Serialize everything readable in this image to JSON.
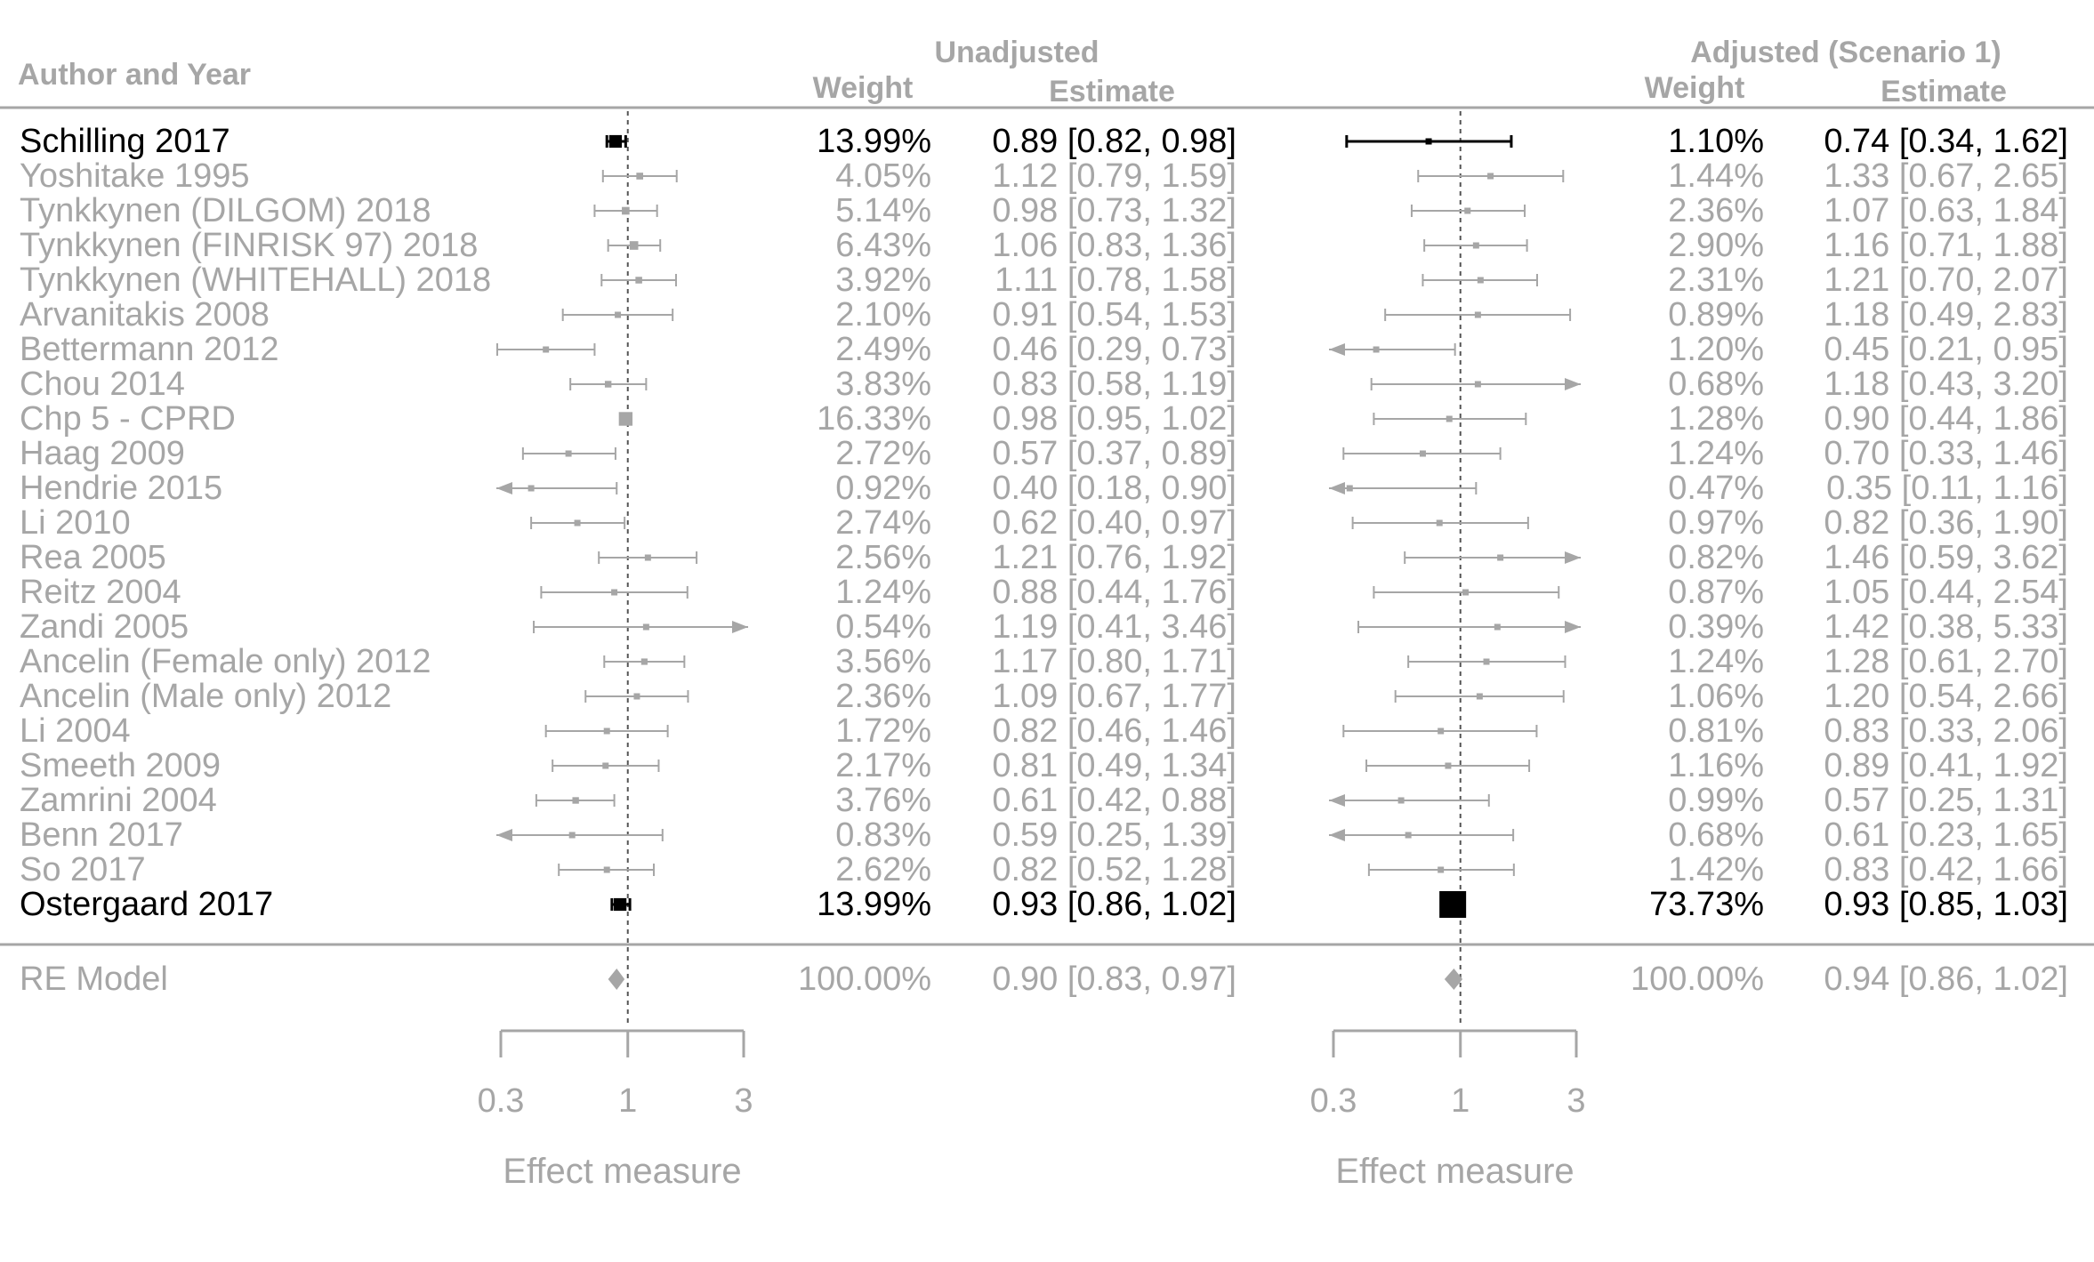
{
  "chart_data": {
    "type": "forest",
    "headers": {
      "study": "Author and Year",
      "unadjusted": "Unadjusted",
      "adjusted": "Adjusted (Scenario 1)",
      "weight": "Weight",
      "estimate": "Estimate"
    },
    "x_scale": "log",
    "xlim": [
      0.3,
      3
    ],
    "ticks": [
      {
        "value": 0.3,
        "label": "0.3"
      },
      {
        "value": 1,
        "label": "1"
      },
      {
        "value": 3,
        "label": "3"
      }
    ],
    "xlabel": "Effect measure",
    "reference_line": 1,
    "colors": {
      "highlight": "#000000",
      "other": "#a6a6a6"
    },
    "rows": [
      {
        "study": "Schilling 2017",
        "highlight": true,
        "unadj": {
          "weight": "13.99%",
          "est": 0.89,
          "lo": 0.82,
          "hi": 0.98,
          "text": "0.89 [0.82, 0.98]"
        },
        "adj": {
          "weight": "1.10%",
          "est": 0.74,
          "lo": 0.34,
          "hi": 1.62,
          "text": "0.74 [0.34, 1.62]"
        }
      },
      {
        "study": "Yoshitake 1995",
        "highlight": false,
        "unadj": {
          "weight": "4.05%",
          "est": 1.12,
          "lo": 0.79,
          "hi": 1.59,
          "text": "1.12 [0.79, 1.59]"
        },
        "adj": {
          "weight": "1.44%",
          "est": 1.33,
          "lo": 0.67,
          "hi": 2.65,
          "text": "1.33 [0.67, 2.65]"
        }
      },
      {
        "study": "Tynkkynen (DILGOM) 2018",
        "highlight": false,
        "unadj": {
          "weight": "5.14%",
          "est": 0.98,
          "lo": 0.73,
          "hi": 1.32,
          "text": "0.98 [0.73, 1.32]"
        },
        "adj": {
          "weight": "2.36%",
          "est": 1.07,
          "lo": 0.63,
          "hi": 1.84,
          "text": "1.07 [0.63, 1.84]"
        }
      },
      {
        "study": "Tynkkynen (FINRISK 97) 2018",
        "highlight": false,
        "unadj": {
          "weight": "6.43%",
          "est": 1.06,
          "lo": 0.83,
          "hi": 1.36,
          "text": "1.06 [0.83, 1.36]"
        },
        "adj": {
          "weight": "2.90%",
          "est": 1.16,
          "lo": 0.71,
          "hi": 1.88,
          "text": "1.16 [0.71, 1.88]"
        }
      },
      {
        "study": "Tynkkynen (WHITEHALL) 2018",
        "highlight": false,
        "unadj": {
          "weight": "3.92%",
          "est": 1.11,
          "lo": 0.78,
          "hi": 1.58,
          "text": "1.11 [0.78, 1.58]"
        },
        "adj": {
          "weight": "2.31%",
          "est": 1.21,
          "lo": 0.7,
          "hi": 2.07,
          "text": "1.21 [0.70, 2.07]"
        }
      },
      {
        "study": "Arvanitakis 2008",
        "highlight": false,
        "unadj": {
          "weight": "2.10%",
          "est": 0.91,
          "lo": 0.54,
          "hi": 1.53,
          "text": "0.91 [0.54, 1.53]"
        },
        "adj": {
          "weight": "0.89%",
          "est": 1.18,
          "lo": 0.49,
          "hi": 2.83,
          "text": "1.18 [0.49, 2.83]"
        }
      },
      {
        "study": "Bettermann 2012",
        "highlight": false,
        "unadj": {
          "weight": "2.49%",
          "est": 0.46,
          "lo": 0.29,
          "hi": 0.73,
          "text": "0.46 [0.29, 0.73]"
        },
        "adj": {
          "weight": "1.20%",
          "est": 0.45,
          "lo": 0.21,
          "hi": 0.95,
          "text": "0.45 [0.21, 0.95]"
        }
      },
      {
        "study": "Chou 2014",
        "highlight": false,
        "unadj": {
          "weight": "3.83%",
          "est": 0.83,
          "lo": 0.58,
          "hi": 1.19,
          "text": "0.83 [0.58, 1.19]"
        },
        "adj": {
          "weight": "0.68%",
          "est": 1.18,
          "lo": 0.43,
          "hi": 3.2,
          "text": "1.18 [0.43, 3.20]"
        }
      },
      {
        "study": "Chp 5 - CPRD",
        "highlight": false,
        "unadj": {
          "weight": "16.33%",
          "est": 0.98,
          "lo": 0.95,
          "hi": 1.02,
          "text": "0.98 [0.95, 1.02]"
        },
        "adj": {
          "weight": "1.28%",
          "est": 0.9,
          "lo": 0.44,
          "hi": 1.86,
          "text": "0.90 [0.44, 1.86]"
        }
      },
      {
        "study": "Haag 2009",
        "highlight": false,
        "unadj": {
          "weight": "2.72%",
          "est": 0.57,
          "lo": 0.37,
          "hi": 0.89,
          "text": "0.57 [0.37, 0.89]"
        },
        "adj": {
          "weight": "1.24%",
          "est": 0.7,
          "lo": 0.33,
          "hi": 1.46,
          "text": "0.70 [0.33, 1.46]"
        }
      },
      {
        "study": "Hendrie 2015",
        "highlight": false,
        "unadj": {
          "weight": "0.92%",
          "est": 0.4,
          "lo": 0.18,
          "hi": 0.9,
          "text": "0.40 [0.18, 0.90]"
        },
        "adj": {
          "weight": "0.47%",
          "est": 0.35,
          "lo": 0.11,
          "hi": 1.16,
          "text": "0.35 [0.11, 1.16]"
        }
      },
      {
        "study": "Li 2010",
        "highlight": false,
        "unadj": {
          "weight": "2.74%",
          "est": 0.62,
          "lo": 0.4,
          "hi": 0.97,
          "text": "0.62 [0.40, 0.97]"
        },
        "adj": {
          "weight": "0.97%",
          "est": 0.82,
          "lo": 0.36,
          "hi": 1.9,
          "text": "0.82 [0.36, 1.90]"
        }
      },
      {
        "study": "Rea 2005",
        "highlight": false,
        "unadj": {
          "weight": "2.56%",
          "est": 1.21,
          "lo": 0.76,
          "hi": 1.92,
          "text": "1.21 [0.76, 1.92]"
        },
        "adj": {
          "weight": "0.82%",
          "est": 1.46,
          "lo": 0.59,
          "hi": 3.62,
          "text": "1.46 [0.59, 3.62]"
        }
      },
      {
        "study": "Reitz 2004",
        "highlight": false,
        "unadj": {
          "weight": "1.24%",
          "est": 0.88,
          "lo": 0.44,
          "hi": 1.76,
          "text": "0.88 [0.44, 1.76]"
        },
        "adj": {
          "weight": "0.87%",
          "est": 1.05,
          "lo": 0.44,
          "hi": 2.54,
          "text": "1.05 [0.44, 2.54]"
        }
      },
      {
        "study": "Zandi 2005",
        "highlight": false,
        "unadj": {
          "weight": "0.54%",
          "est": 1.19,
          "lo": 0.41,
          "hi": 3.46,
          "text": "1.19 [0.41, 3.46]"
        },
        "adj": {
          "weight": "0.39%",
          "est": 1.42,
          "lo": 0.38,
          "hi": 5.33,
          "text": "1.42 [0.38, 5.33]"
        }
      },
      {
        "study": "Ancelin (Female only) 2012",
        "highlight": false,
        "unadj": {
          "weight": "3.56%",
          "est": 1.17,
          "lo": 0.8,
          "hi": 1.71,
          "text": "1.17 [0.80, 1.71]"
        },
        "adj": {
          "weight": "1.24%",
          "est": 1.28,
          "lo": 0.61,
          "hi": 2.7,
          "text": "1.28 [0.61, 2.70]"
        }
      },
      {
        "study": "Ancelin (Male only) 2012",
        "highlight": false,
        "unadj": {
          "weight": "2.36%",
          "est": 1.09,
          "lo": 0.67,
          "hi": 1.77,
          "text": "1.09 [0.67, 1.77]"
        },
        "adj": {
          "weight": "1.06%",
          "est": 1.2,
          "lo": 0.54,
          "hi": 2.66,
          "text": "1.20 [0.54, 2.66]"
        }
      },
      {
        "study": "Li 2004",
        "highlight": false,
        "unadj": {
          "weight": "1.72%",
          "est": 0.82,
          "lo": 0.46,
          "hi": 1.46,
          "text": "0.82 [0.46, 1.46]"
        },
        "adj": {
          "weight": "0.81%",
          "est": 0.83,
          "lo": 0.33,
          "hi": 2.06,
          "text": "0.83 [0.33, 2.06]"
        }
      },
      {
        "study": "Smeeth 2009",
        "highlight": false,
        "unadj": {
          "weight": "2.17%",
          "est": 0.81,
          "lo": 0.49,
          "hi": 1.34,
          "text": "0.81 [0.49, 1.34]"
        },
        "adj": {
          "weight": "1.16%",
          "est": 0.89,
          "lo": 0.41,
          "hi": 1.92,
          "text": "0.89 [0.41, 1.92]"
        }
      },
      {
        "study": "Zamrini 2004",
        "highlight": false,
        "unadj": {
          "weight": "3.76%",
          "est": 0.61,
          "lo": 0.42,
          "hi": 0.88,
          "text": "0.61 [0.42, 0.88]"
        },
        "adj": {
          "weight": "0.99%",
          "est": 0.57,
          "lo": 0.25,
          "hi": 1.31,
          "text": "0.57 [0.25, 1.31]"
        }
      },
      {
        "study": "Benn 2017",
        "highlight": false,
        "unadj": {
          "weight": "0.83%",
          "est": 0.59,
          "lo": 0.25,
          "hi": 1.39,
          "text": "0.59 [0.25, 1.39]"
        },
        "adj": {
          "weight": "0.68%",
          "est": 0.61,
          "lo": 0.23,
          "hi": 1.65,
          "text": "0.61 [0.23, 1.65]"
        }
      },
      {
        "study": "So 2017",
        "highlight": false,
        "unadj": {
          "weight": "2.62%",
          "est": 0.82,
          "lo": 0.52,
          "hi": 1.28,
          "text": "0.82 [0.52, 1.28]"
        },
        "adj": {
          "weight": "1.42%",
          "est": 0.83,
          "lo": 0.42,
          "hi": 1.66,
          "text": "0.83 [0.42, 1.66]"
        }
      },
      {
        "study": "Ostergaard 2017",
        "highlight": true,
        "unadj": {
          "weight": "13.99%",
          "est": 0.93,
          "lo": 0.86,
          "hi": 1.02,
          "text": "0.93 [0.86, 1.02]"
        },
        "adj": {
          "weight": "73.73%",
          "est": 0.93,
          "lo": 0.85,
          "hi": 1.03,
          "text": "0.93 [0.85, 1.03]"
        }
      }
    ],
    "summary": {
      "label": "RE Model",
      "unadj": {
        "weight": "100.00%",
        "est": 0.9,
        "lo": 0.83,
        "hi": 0.97,
        "text": "0.90 [0.83, 0.97]"
      },
      "adj": {
        "weight": "100.00%",
        "est": 0.94,
        "lo": 0.86,
        "hi": 1.02,
        "text": "0.94 [0.86, 1.02]"
      }
    }
  }
}
